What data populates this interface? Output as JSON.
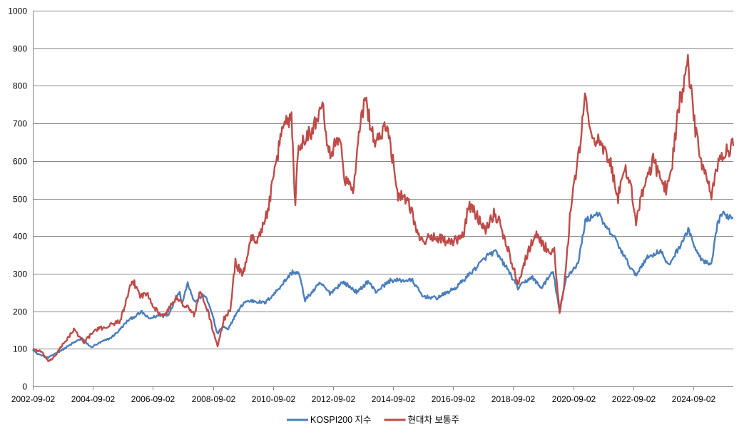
{
  "chart_data": {
    "type": "line",
    "title": "",
    "xlabel": "",
    "ylabel": "",
    "ylim": [
      0,
      1000
    ],
    "yticks": [
      0,
      100,
      200,
      300,
      400,
      500,
      600,
      700,
      800,
      900,
      1000
    ],
    "x_range": [
      "2002-09-02",
      "2025-12-31"
    ],
    "x_tick_labels": [
      "2002-09-02",
      "2004-09-02",
      "2006-09-02",
      "2008-09-02",
      "2010-09-02",
      "2012-09-02",
      "2014-09-02",
      "2016-09-02",
      "2018-09-02",
      "2020-09-02",
      "2022-09-02",
      "2024-09-02"
    ],
    "grid": "horizontal",
    "legend_position": "bottom",
    "series": [
      {
        "name": "KOSPI200 지수",
        "color": "#4a7ebb",
        "points": [
          [
            "2002-09-02",
            100
          ],
          [
            "2002-10-15",
            88
          ],
          [
            "2003-03-10",
            76
          ],
          [
            "2003-05-01",
            84
          ],
          [
            "2003-09-01",
            98
          ],
          [
            "2004-01-02",
            115
          ],
          [
            "2004-04-20",
            128
          ],
          [
            "2004-08-10",
            104
          ],
          [
            "2004-12-30",
            120
          ],
          [
            "2005-04-01",
            128
          ],
          [
            "2005-07-01",
            145
          ],
          [
            "2005-11-01",
            175
          ],
          [
            "2006-04-20",
            198
          ],
          [
            "2006-07-15",
            180
          ],
          [
            "2006-12-28",
            192
          ],
          [
            "2007-03-01",
            188
          ],
          [
            "2007-07-25",
            255
          ],
          [
            "2007-08-17",
            220
          ],
          [
            "2007-10-31",
            275
          ],
          [
            "2008-01-22",
            225
          ],
          [
            "2008-05-15",
            245
          ],
          [
            "2008-08-01",
            210
          ],
          [
            "2008-10-24",
            140
          ],
          [
            "2008-12-31",
            160
          ],
          [
            "2009-03-03",
            150
          ],
          [
            "2009-06-01",
            190
          ],
          [
            "2009-09-20",
            225
          ],
          [
            "2009-12-31",
            228
          ],
          [
            "2010-05-25",
            222
          ],
          [
            "2010-09-30",
            250
          ],
          [
            "2011-04-27",
            305
          ],
          [
            "2011-07-15",
            300
          ],
          [
            "2011-09-26",
            230
          ],
          [
            "2012-03-30",
            275
          ],
          [
            "2012-07-25",
            248
          ],
          [
            "2012-12-31",
            278
          ],
          [
            "2013-06-25",
            250
          ],
          [
            "2013-10-30",
            280
          ],
          [
            "2014-02-04",
            252
          ],
          [
            "2014-07-30",
            282
          ],
          [
            "2015-04-24",
            282
          ],
          [
            "2015-08-24",
            240
          ],
          [
            "2016-02-12",
            235
          ],
          [
            "2016-10-01",
            262
          ],
          [
            "2017-05-01",
            308
          ],
          [
            "2017-11-01",
            350
          ],
          [
            "2018-01-29",
            358
          ],
          [
            "2018-07-01",
            310
          ],
          [
            "2018-10-29",
            262
          ],
          [
            "2019-04-15",
            292
          ],
          [
            "2019-08-06",
            262
          ],
          [
            "2019-12-31",
            305
          ],
          [
            "2020-03-19",
            200
          ],
          [
            "2020-06-08",
            290
          ],
          [
            "2020-11-01",
            328
          ],
          [
            "2021-01-25",
            440
          ],
          [
            "2021-06-25",
            462
          ],
          [
            "2021-10-10",
            420
          ],
          [
            "2022-01-05",
            400
          ],
          [
            "2022-06-23",
            330
          ],
          [
            "2022-09-30",
            295
          ],
          [
            "2023-02-01",
            340
          ],
          [
            "2023-07-31",
            362
          ],
          [
            "2023-10-31",
            320
          ],
          [
            "2024-03-31",
            378
          ],
          [
            "2024-07-11",
            418
          ],
          [
            "2024-10-01",
            360
          ],
          [
            "2025-01-02",
            332
          ],
          [
            "2025-04-09",
            322
          ],
          [
            "2025-06-20",
            430
          ],
          [
            "2025-08-01",
            458
          ],
          [
            "2025-12-31",
            450
          ]
        ]
      },
      {
        "name": "현대차 보통주",
        "color": "#be4b48",
        "points": [
          [
            "2002-09-02",
            100
          ],
          [
            "2002-12-15",
            92
          ],
          [
            "2003-03-17",
            65
          ],
          [
            "2003-06-01",
            82
          ],
          [
            "2003-10-01",
            120
          ],
          [
            "2004-01-15",
            150
          ],
          [
            "2004-05-17",
            118
          ],
          [
            "2004-10-01",
            150
          ],
          [
            "2005-03-01",
            160
          ],
          [
            "2005-08-01",
            175
          ],
          [
            "2005-12-30",
            282
          ],
          [
            "2006-04-10",
            240
          ],
          [
            "2006-07-01",
            248
          ],
          [
            "2006-10-01",
            205
          ],
          [
            "2007-01-15",
            185
          ],
          [
            "2007-06-01",
            235
          ],
          [
            "2007-11-01",
            210
          ],
          [
            "2008-01-15",
            190
          ],
          [
            "2008-04-01",
            252
          ],
          [
            "2008-07-01",
            200
          ],
          [
            "2008-10-27",
            105
          ],
          [
            "2009-01-15",
            180
          ],
          [
            "2009-03-31",
            205
          ],
          [
            "2009-06-01",
            330
          ],
          [
            "2009-09-01",
            295
          ],
          [
            "2009-11-30",
            390
          ],
          [
            "2010-03-01",
            395
          ],
          [
            "2010-05-31",
            440
          ],
          [
            "2010-09-01",
            540
          ],
          [
            "2010-12-31",
            700
          ],
          [
            "2011-04-15",
            715
          ],
          [
            "2011-05-01",
            650
          ],
          [
            "2011-06-01",
            470
          ],
          [
            "2011-07-01",
            630
          ],
          [
            "2011-10-01",
            670
          ],
          [
            "2012-01-01",
            680
          ],
          [
            "2012-04-25",
            770
          ],
          [
            "2012-07-10",
            620
          ],
          [
            "2012-12-10",
            660
          ],
          [
            "2013-01-10",
            560
          ],
          [
            "2013-05-01",
            520
          ],
          [
            "2013-08-01",
            700
          ],
          [
            "2013-10-01",
            765
          ],
          [
            "2014-01-15",
            650
          ],
          [
            "2014-07-01",
            690
          ],
          [
            "2014-11-01",
            510
          ],
          [
            "2015-03-01",
            500
          ],
          [
            "2015-08-01",
            385
          ],
          [
            "2016-02-01",
            400
          ],
          [
            "2016-08-01",
            380
          ],
          [
            "2017-01-01",
            400
          ],
          [
            "2017-03-10",
            485
          ],
          [
            "2017-10-01",
            420
          ],
          [
            "2018-01-10",
            460
          ],
          [
            "2018-04-01",
            430
          ],
          [
            "2018-10-29",
            275
          ],
          [
            "2019-03-01",
            360
          ],
          [
            "2019-06-01",
            405
          ],
          [
            "2019-11-01",
            360
          ],
          [
            "2020-01-15",
            360
          ],
          [
            "2020-03-19",
            190
          ],
          [
            "2020-06-01",
            300
          ],
          [
            "2020-08-01",
            480
          ],
          [
            "2020-12-01",
            650
          ],
          [
            "2021-01-11",
            770
          ],
          [
            "2021-04-01",
            680
          ],
          [
            "2021-08-01",
            640
          ],
          [
            "2021-12-01",
            590
          ],
          [
            "2022-03-01",
            505
          ],
          [
            "2022-06-01",
            575
          ],
          [
            "2022-08-01",
            540
          ],
          [
            "2022-10-05",
            440
          ],
          [
            "2023-01-15",
            535
          ],
          [
            "2023-05-01",
            600
          ],
          [
            "2023-10-15",
            520
          ],
          [
            "2023-12-20",
            600
          ],
          [
            "2024-03-01",
            740
          ],
          [
            "2024-06-27",
            855
          ],
          [
            "2024-09-15",
            700
          ],
          [
            "2024-12-15",
            590
          ],
          [
            "2025-04-09",
            505
          ],
          [
            "2025-06-01",
            580
          ],
          [
            "2025-09-01",
            615
          ],
          [
            "2025-12-31",
            640
          ]
        ]
      }
    ]
  }
}
